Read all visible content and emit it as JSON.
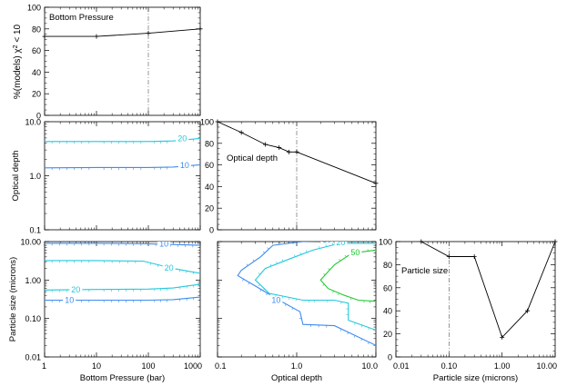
{
  "figure": {
    "ylabel_pct": "%(models) χ² < 10",
    "ylabel_pct_prefix": "%(models) ",
    "ylabel_pct_chi": "χ",
    "ylabel_pct_sup": "2",
    "ylabel_pct_suffix": " < 10"
  },
  "chart_data": [
    {
      "id": "p_pressure",
      "type": "line",
      "title": "Bottom Pressure",
      "xscale": "log",
      "xlim": [
        1,
        1000
      ],
      "ylim": [
        0,
        100
      ],
      "yticks": [
        0,
        20,
        40,
        60,
        80,
        100
      ],
      "ytick_labels": [
        "0",
        "20",
        "40",
        "60",
        "80",
        "100"
      ],
      "ylabel": "%(models) χ² < 10",
      "best_fit_x": 100,
      "series": [
        {
          "name": "pressure",
          "x": [
            1,
            10,
            100,
            1000
          ],
          "y": [
            73,
            73,
            76,
            80
          ]
        }
      ]
    },
    {
      "id": "p_tau_vs_p",
      "type": "contour",
      "xscale": "log",
      "yscale": "log",
      "xlim": [
        1,
        1000
      ],
      "ylim": [
        0.1,
        10
      ],
      "yticks": [
        0.1,
        1,
        10
      ],
      "ytick_labels": [
        "0.1",
        "1.0",
        "10.0"
      ],
      "ylabel": "Optical depth",
      "contours": [
        {
          "level": 10,
          "label": "10",
          "color": "#3c8cf0",
          "x": [
            1,
            10,
            100,
            300,
            1000
          ],
          "y": [
            1.4,
            1.42,
            1.42,
            1.45,
            1.6
          ],
          "label_x": 500,
          "label_y": 1.55
        },
        {
          "level": 20,
          "label": "20",
          "color": "#22c8dc",
          "x": [
            1,
            10,
            100,
            300,
            1000
          ],
          "y": [
            4.3,
            4.3,
            4.3,
            4.4,
            4.9
          ],
          "label_x": 450,
          "label_y": 4.9
        }
      ]
    },
    {
      "id": "p_tau",
      "type": "line",
      "title": "Optical depth",
      "xscale": "log",
      "xlim": [
        0.1,
        10
      ],
      "ylim": [
        0,
        100
      ],
      "yticks": [
        0,
        20,
        40,
        60,
        80,
        100
      ],
      "ytick_labels": [
        "0",
        "20",
        "40",
        "60",
        "80",
        "100"
      ],
      "best_fit_x": 1,
      "series": [
        {
          "name": "tau",
          "x": [
            0.1,
            0.2,
            0.4,
            0.6,
            0.8,
            1.0,
            10
          ],
          "y": [
            100,
            90,
            79,
            76,
            72,
            72,
            43
          ]
        }
      ]
    },
    {
      "id": "p_size_vs_p",
      "type": "contour",
      "xscale": "log",
      "yscale": "log",
      "xlim": [
        1,
        1000
      ],
      "ylim": [
        0.01,
        10
      ],
      "yticks": [
        0.01,
        0.1,
        1,
        10
      ],
      "ytick_labels": [
        "0.01",
        "0.10",
        "1.00",
        "10.00"
      ],
      "xticks": [
        1,
        10,
        100,
        1000
      ],
      "xtick_labels": [
        "1",
        "10",
        "100",
        "1000"
      ],
      "xlabel": "Bottom Pressure (bar)",
      "ylabel": "Particle size (microns)",
      "contours": [
        {
          "level": 10,
          "label": "10",
          "color": "#3c8cf0",
          "x": [
            1,
            10,
            100,
            1000
          ],
          "y": [
            9.0,
            9.0,
            8.8,
            8.0
          ],
          "label_x": 200,
          "label_y": 8.7
        },
        {
          "level": 20,
          "label": "20",
          "color": "#22c8dc",
          "x": [
            1,
            10,
            80,
            300,
            1000
          ],
          "y": [
            3.2,
            3.2,
            3.1,
            2.0,
            1.5
          ],
          "label_x": 250,
          "label_y": 2.05
        },
        {
          "level": 20,
          "label": "20",
          "color": "#22c8dc",
          "x": [
            1,
            10,
            100,
            300,
            1000
          ],
          "y": [
            0.55,
            0.57,
            0.58,
            0.62,
            0.78
          ],
          "label_x": 4,
          "label_y": 0.56
        },
        {
          "level": 10,
          "label": "10",
          "color": "#3c8cf0",
          "x": [
            1,
            10,
            100,
            300,
            1000
          ],
          "y": [
            0.3,
            0.3,
            0.3,
            0.31,
            0.36
          ],
          "label_x": 3,
          "label_y": 0.3
        }
      ]
    },
    {
      "id": "p_size_vs_tau",
      "type": "contour",
      "xscale": "log",
      "yscale": "log",
      "xlim": [
        0.1,
        10
      ],
      "ylim": [
        0.01,
        10
      ],
      "xticks": [
        0.1,
        1,
        10
      ],
      "xtick_labels": [
        "0.1",
        "1.0",
        "10.0"
      ],
      "xlabel": "Optical depth",
      "contours": [
        {
          "level": 10,
          "label": "10",
          "color": "#3c8cf0",
          "x": [
            10,
            2.4,
            1.2,
            0.5,
            0.35,
            0.2,
            0.18,
            0.3,
            0.6,
            1.1,
            1.2,
            3.0,
            10
          ],
          "y": [
            10.5,
            10.5,
            10.0,
            8.0,
            4.0,
            1.8,
            1.3,
            0.7,
            0.3,
            0.15,
            0.07,
            0.065,
            0.02
          ],
          "label_x": 2.4,
          "label_y": 11,
          "label2": "10",
          "label2_x": 0.55,
          "label2_y": 0.3
        },
        {
          "level": 20,
          "label": "20",
          "color": "#22c8dc",
          "x": [
            10,
            3.5,
            1.6,
            0.8,
            0.4,
            0.3,
            0.45,
            1.2,
            2.0,
            3.0,
            4.5,
            4.5,
            10
          ],
          "y": [
            9.0,
            9.0,
            6.0,
            3.5,
            2.0,
            1.0,
            0.45,
            0.3,
            0.3,
            0.3,
            0.25,
            0.09,
            0.05
          ],
          "label_x": 3.6,
          "label_y": 9.5
        },
        {
          "level": 50,
          "label": "50",
          "color": "#20c830",
          "x": [
            10,
            5.0,
            3.0,
            2.0,
            2.5,
            4.0,
            6.0,
            10
          ],
          "y": [
            6.0,
            5.0,
            2.5,
            1.0,
            0.6,
            0.4,
            0.3,
            0.28
          ],
          "label_x": 5.5,
          "label_y": 5.2
        }
      ]
    },
    {
      "id": "p_size",
      "type": "line",
      "title": "Particle size",
      "xscale": "log",
      "xlim": [
        0.01,
        10
      ],
      "ylim": [
        0,
        100
      ],
      "yticks": [
        0,
        20,
        40,
        60,
        80,
        100
      ],
      "ytick_labels": [
        "0",
        "20",
        "40",
        "60",
        "80",
        "100"
      ],
      "xticks": [
        0.01,
        0.1,
        1,
        10
      ],
      "xtick_labels": [
        "0.01",
        "0.10",
        "1.00",
        "10.00"
      ],
      "xlabel": "Particle size (microns)",
      "best_fit_x": 0.1,
      "series": [
        {
          "name": "size",
          "x": [
            0.03,
            0.1,
            0.3,
            1,
            3,
            10
          ],
          "y": [
            100,
            87,
            87,
            17,
            40,
            100
          ]
        }
      ]
    }
  ]
}
